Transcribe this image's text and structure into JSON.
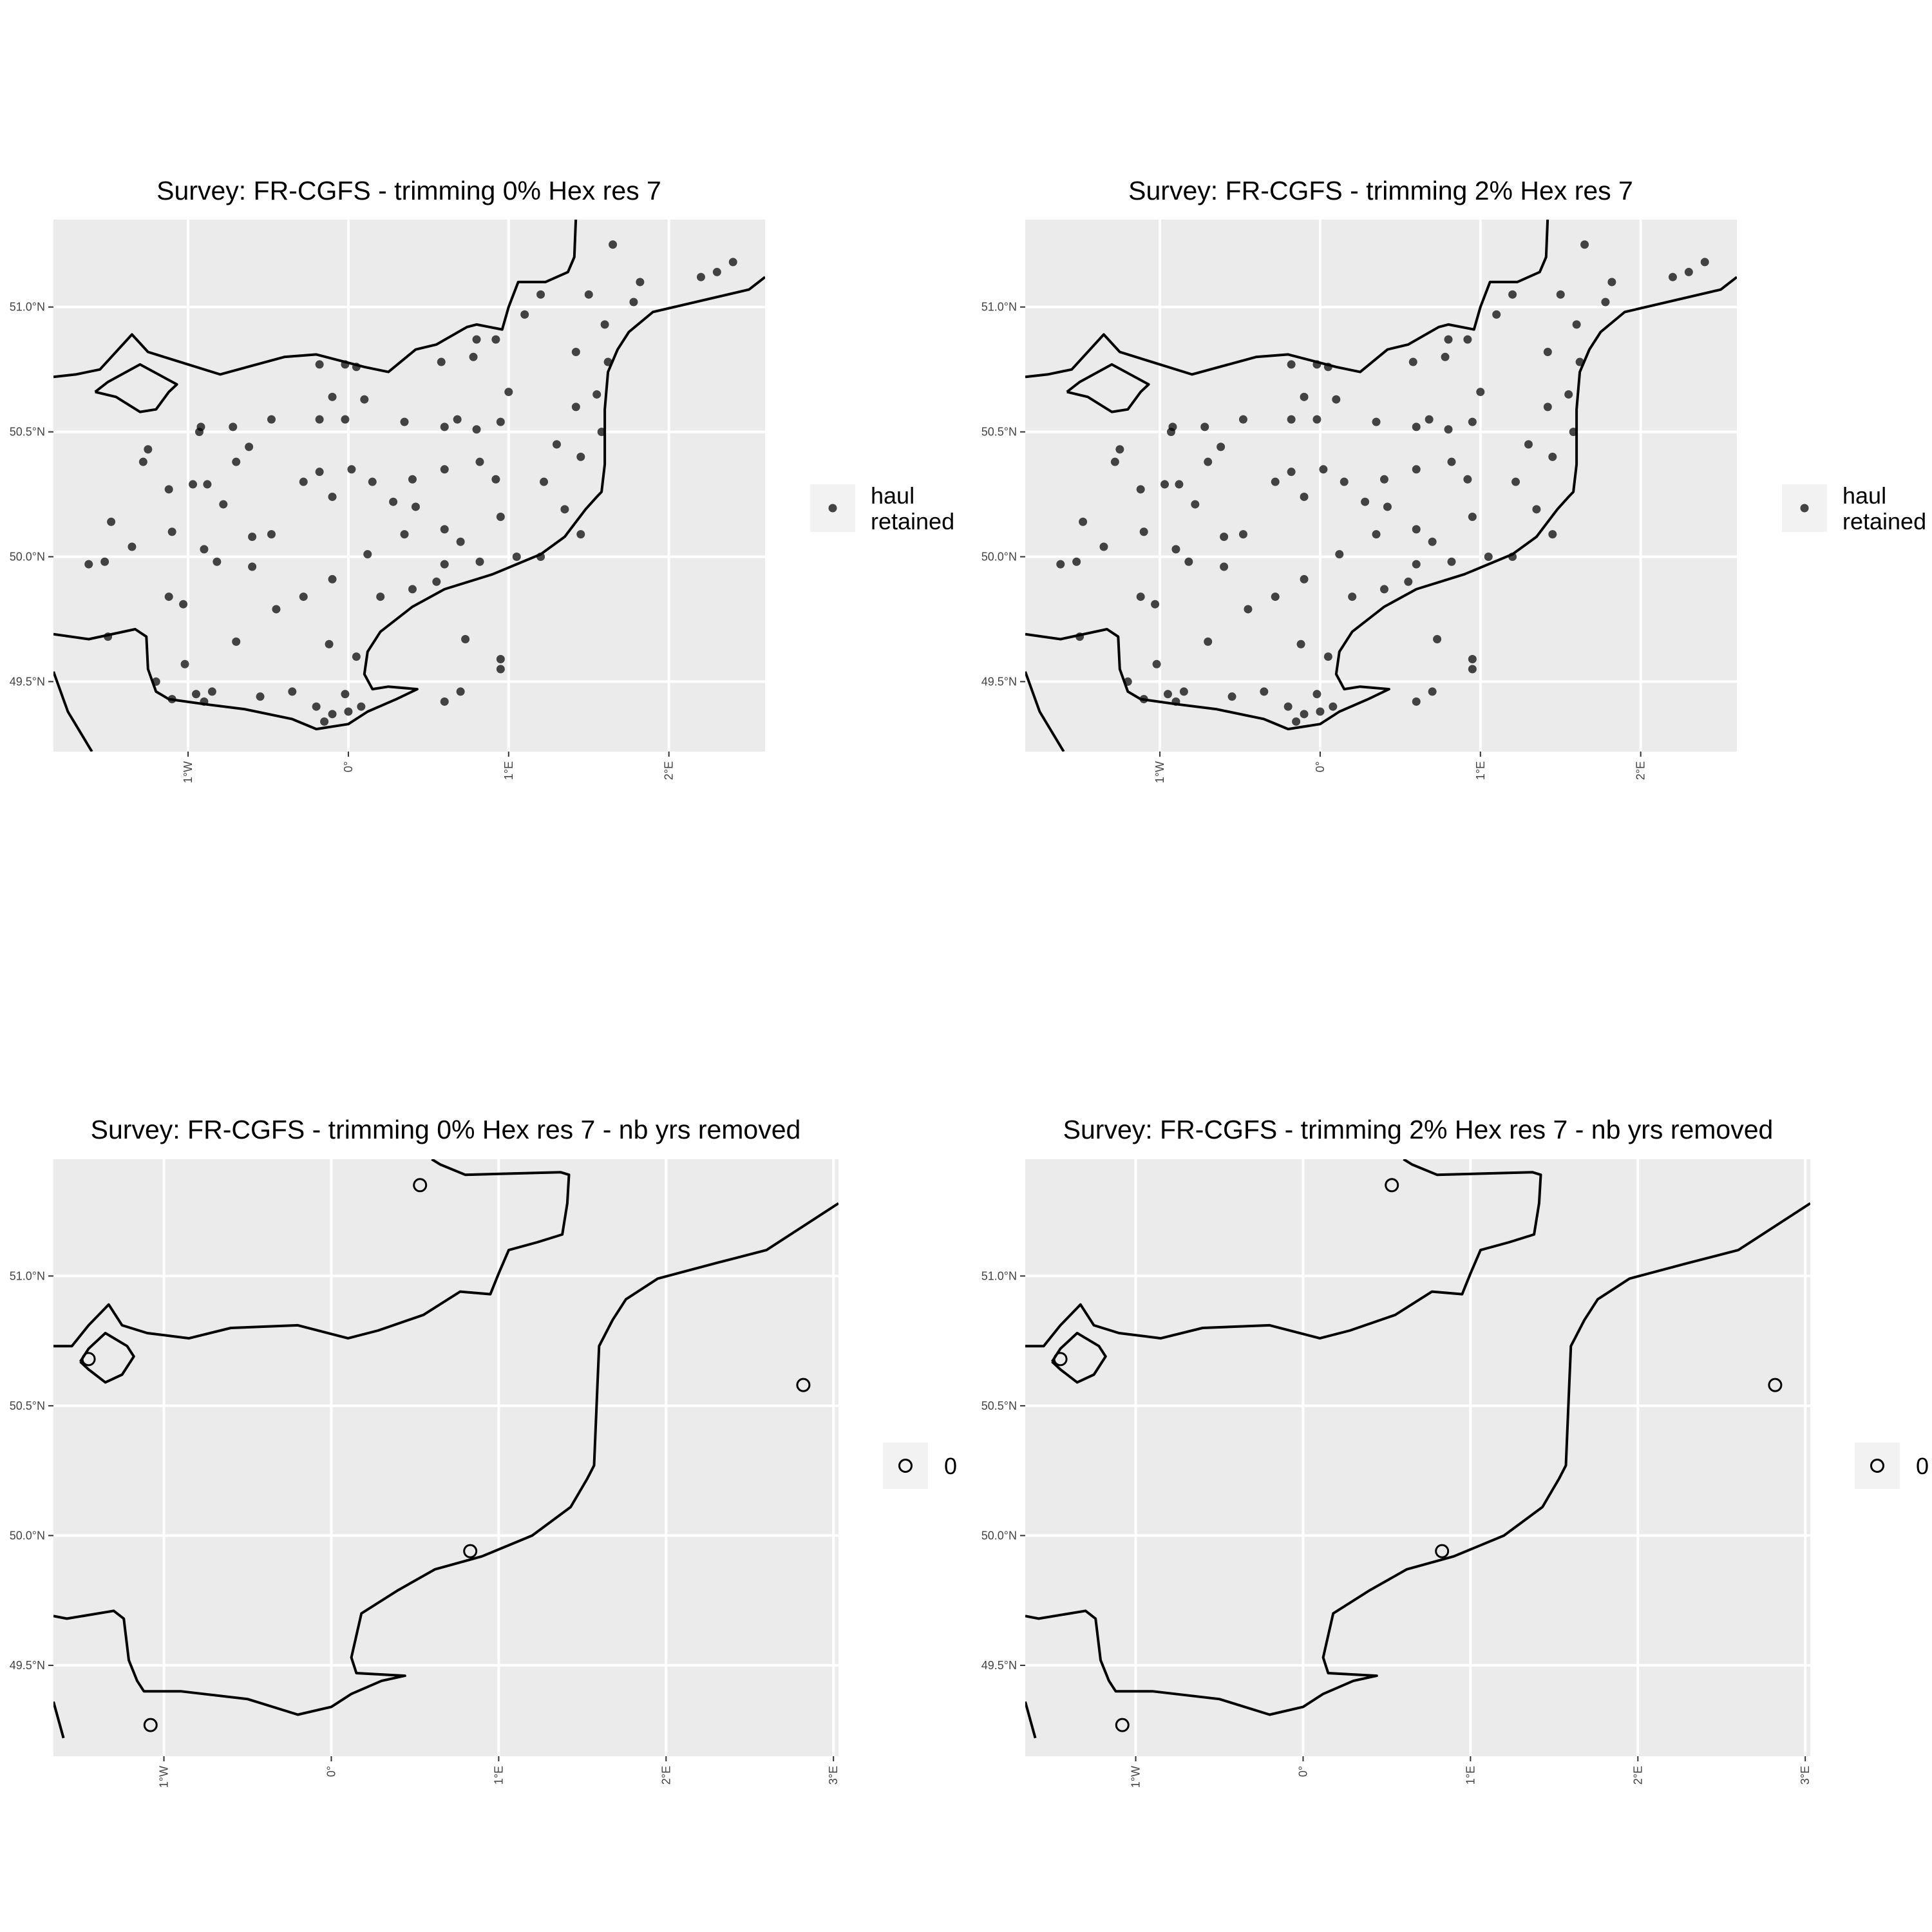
{
  "chart_data": [
    {
      "type": "scatter",
      "title": "Survey: FR-CGFS - trimming 0% Hex res 7",
      "x_ticks": [
        "1°W",
        "0°",
        "1°E",
        "2°E"
      ],
      "y_ticks": [
        "49.5°N",
        "50.0°N",
        "50.5°N",
        "51.0°N"
      ],
      "xlim": [
        -1.84,
        2.6
      ],
      "ylim": [
        49.22,
        51.35
      ],
      "legend": {
        "labels": [
          "haul",
          "retained"
        ],
        "placement": "right",
        "symbol": "filled-circle"
      },
      "series": [
        {
          "values": [
            [
              -1.62,
              49.97
            ],
            [
              -1.52,
              49.98
            ],
            [
              -1.48,
              50.14
            ],
            [
              -1.5,
              49.68
            ],
            [
              -1.28,
              50.38
            ],
            [
              -1.35,
              50.04
            ],
            [
              -1.25,
              50.43
            ],
            [
              -1.12,
              50.27
            ],
            [
              -1.1,
              50.1
            ],
            [
              -1.12,
              49.84
            ],
            [
              -1.03,
              49.81
            ],
            [
              -0.92,
              50.52
            ],
            [
              -0.97,
              50.29
            ],
            [
              -0.9,
              50.03
            ],
            [
              -0.93,
              50.5
            ],
            [
              -0.88,
              50.29
            ],
            [
              -0.82,
              49.98
            ],
            [
              -0.78,
              50.21
            ],
            [
              -0.72,
              50.52
            ],
            [
              -0.7,
              50.38
            ],
            [
              -0.7,
              49.66
            ],
            [
              -0.62,
              50.44
            ],
            [
              -0.6,
              50.08
            ],
            [
              -0.6,
              49.96
            ],
            [
              -0.48,
              50.55
            ],
            [
              -0.48,
              50.09
            ],
            [
              -0.45,
              49.79
            ],
            [
              -0.28,
              50.3
            ],
            [
              -0.28,
              49.84
            ],
            [
              -0.18,
              50.77
            ],
            [
              -0.18,
              50.55
            ],
            [
              -0.18,
              50.34
            ],
            [
              -0.12,
              49.65
            ],
            [
              -0.1,
              50.24
            ],
            [
              -0.1,
              49.91
            ],
            [
              -0.02,
              50.77
            ],
            [
              -0.02,
              50.55
            ],
            [
              0.02,
              50.35
            ],
            [
              0.05,
              50.76
            ],
            [
              0.1,
              50.63
            ],
            [
              0.12,
              50.01
            ],
            [
              0.2,
              49.84
            ],
            [
              0.28,
              50.22
            ],
            [
              0.35,
              50.54
            ],
            [
              0.4,
              50.31
            ],
            [
              0.35,
              50.09
            ],
            [
              0.4,
              49.87
            ],
            [
              0.55,
              49.9
            ],
            [
              0.58,
              50.78
            ],
            [
              0.6,
              50.52
            ],
            [
              0.6,
              50.35
            ],
            [
              0.6,
              50.11
            ],
            [
              0.6,
              49.97
            ],
            [
              0.68,
              50.55
            ],
            [
              0.7,
              50.06
            ],
            [
              0.78,
              50.8
            ],
            [
              0.8,
              50.87
            ],
            [
              0.8,
              50.51
            ],
            [
              0.82,
              50.38
            ],
            [
              0.82,
              49.98
            ],
            [
              0.92,
              50.87
            ],
            [
              0.95,
              50.54
            ],
            [
              0.95,
              50.16
            ],
            [
              1.0,
              50.66
            ],
            [
              1.05,
              50.0
            ],
            [
              1.1,
              50.97
            ],
            [
              1.2,
              50.0
            ],
            [
              1.2,
              51.05
            ],
            [
              1.22,
              50.3
            ],
            [
              1.3,
              50.45
            ],
            [
              1.35,
              50.19
            ],
            [
              1.42,
              50.82
            ],
            [
              1.42,
              50.6
            ],
            [
              1.45,
              50.4
            ],
            [
              1.45,
              50.09
            ],
            [
              1.5,
              51.05
            ],
            [
              1.55,
              50.65
            ],
            [
              1.58,
              50.5
            ],
            [
              1.62,
              50.78
            ],
            [
              1.6,
              50.93
            ],
            [
              1.65,
              51.25
            ],
            [
              1.82,
              51.1
            ],
            [
              1.78,
              51.02
            ],
            [
              2.2,
              51.12
            ],
            [
              2.3,
              51.14
            ],
            [
              2.4,
              51.18
            ],
            [
              -1.02,
              49.57
            ],
            [
              -0.95,
              49.45
            ],
            [
              -1.2,
              49.5
            ],
            [
              -1.1,
              49.43
            ],
            [
              -0.9,
              49.42
            ],
            [
              -0.85,
              49.46
            ],
            [
              -0.55,
              49.44
            ],
            [
              -0.35,
              49.46
            ],
            [
              -0.2,
              49.4
            ],
            [
              -0.1,
              49.37
            ],
            [
              0.0,
              49.38
            ],
            [
              0.08,
              49.4
            ],
            [
              0.05,
              49.6
            ],
            [
              -0.15,
              49.34
            ],
            [
              -0.02,
              49.45
            ],
            [
              0.7,
              49.46
            ],
            [
              0.95,
              49.59
            ],
            [
              0.6,
              49.42
            ],
            [
              -0.1,
              50.64
            ],
            [
              0.15,
              50.3
            ],
            [
              0.42,
              50.2
            ],
            [
              0.92,
              50.31
            ],
            [
              0.73,
              49.67
            ],
            [
              0.95,
              49.55
            ]
          ]
        }
      ]
    },
    {
      "type": "scatter",
      "title": "Survey: FR-CGFS - trimming 2% Hex res 7",
      "x_ticks": [
        "1°W",
        "0°",
        "1°E",
        "2°E"
      ],
      "y_ticks": [
        "49.5°N",
        "50.0°N",
        "50.5°N",
        "51.0°N"
      ],
      "xlim": [
        -1.84,
        2.6
      ],
      "ylim": [
        49.22,
        51.35
      ],
      "legend": {
        "labels": [
          "haul",
          "retained"
        ],
        "placement": "right",
        "symbol": "filled-circle"
      },
      "series": [
        {
          "values": [
            [
              -1.62,
              49.97
            ],
            [
              -1.52,
              49.98
            ],
            [
              -1.48,
              50.14
            ],
            [
              -1.5,
              49.68
            ],
            [
              -1.28,
              50.38
            ],
            [
              -1.35,
              50.04
            ],
            [
              -1.25,
              50.43
            ],
            [
              -1.12,
              50.27
            ],
            [
              -1.1,
              50.1
            ],
            [
              -1.12,
              49.84
            ],
            [
              -1.03,
              49.81
            ],
            [
              -0.92,
              50.52
            ],
            [
              -0.97,
              50.29
            ],
            [
              -0.9,
              50.03
            ],
            [
              -0.93,
              50.5
            ],
            [
              -0.88,
              50.29
            ],
            [
              -0.82,
              49.98
            ],
            [
              -0.78,
              50.21
            ],
            [
              -0.72,
              50.52
            ],
            [
              -0.7,
              50.38
            ],
            [
              -0.7,
              49.66
            ],
            [
              -0.62,
              50.44
            ],
            [
              -0.6,
              50.08
            ],
            [
              -0.6,
              49.96
            ],
            [
              -0.48,
              50.55
            ],
            [
              -0.48,
              50.09
            ],
            [
              -0.45,
              49.79
            ],
            [
              -0.28,
              50.3
            ],
            [
              -0.28,
              49.84
            ],
            [
              -0.18,
              50.77
            ],
            [
              -0.18,
              50.55
            ],
            [
              -0.18,
              50.34
            ],
            [
              -0.12,
              49.65
            ],
            [
              -0.1,
              50.24
            ],
            [
              -0.1,
              49.91
            ],
            [
              -0.02,
              50.77
            ],
            [
              -0.02,
              50.55
            ],
            [
              0.02,
              50.35
            ],
            [
              0.05,
              50.76
            ],
            [
              0.1,
              50.63
            ],
            [
              0.12,
              50.01
            ],
            [
              0.2,
              49.84
            ],
            [
              0.28,
              50.22
            ],
            [
              0.35,
              50.54
            ],
            [
              0.4,
              50.31
            ],
            [
              0.35,
              50.09
            ],
            [
              0.4,
              49.87
            ],
            [
              0.55,
              49.9
            ],
            [
              0.58,
              50.78
            ],
            [
              0.6,
              50.52
            ],
            [
              0.6,
              50.35
            ],
            [
              0.6,
              50.11
            ],
            [
              0.6,
              49.97
            ],
            [
              0.68,
              50.55
            ],
            [
              0.7,
              50.06
            ],
            [
              0.78,
              50.8
            ],
            [
              0.8,
              50.87
            ],
            [
              0.8,
              50.51
            ],
            [
              0.82,
              50.38
            ],
            [
              0.82,
              49.98
            ],
            [
              0.92,
              50.87
            ],
            [
              0.95,
              50.54
            ],
            [
              0.95,
              50.16
            ],
            [
              1.0,
              50.66
            ],
            [
              1.05,
              50.0
            ],
            [
              1.1,
              50.97
            ],
            [
              1.2,
              50.0
            ],
            [
              1.2,
              51.05
            ],
            [
              1.22,
              50.3
            ],
            [
              1.3,
              50.45
            ],
            [
              1.35,
              50.19
            ],
            [
              1.42,
              50.82
            ],
            [
              1.42,
              50.6
            ],
            [
              1.45,
              50.4
            ],
            [
              1.45,
              50.09
            ],
            [
              1.5,
              51.05
            ],
            [
              1.55,
              50.65
            ],
            [
              1.58,
              50.5
            ],
            [
              1.62,
              50.78
            ],
            [
              1.6,
              50.93
            ],
            [
              1.65,
              51.25
            ],
            [
              1.82,
              51.1
            ],
            [
              1.78,
              51.02
            ],
            [
              2.2,
              51.12
            ],
            [
              2.3,
              51.14
            ],
            [
              2.4,
              51.18
            ],
            [
              -1.02,
              49.57
            ],
            [
              -0.95,
              49.45
            ],
            [
              -1.2,
              49.5
            ],
            [
              -1.1,
              49.43
            ],
            [
              -0.9,
              49.42
            ],
            [
              -0.85,
              49.46
            ],
            [
              -0.55,
              49.44
            ],
            [
              -0.35,
              49.46
            ],
            [
              -0.2,
              49.4
            ],
            [
              -0.1,
              49.37
            ],
            [
              0.0,
              49.38
            ],
            [
              0.08,
              49.4
            ],
            [
              0.05,
              49.6
            ],
            [
              -0.15,
              49.34
            ],
            [
              -0.02,
              49.45
            ],
            [
              0.7,
              49.46
            ],
            [
              0.95,
              49.59
            ],
            [
              0.6,
              49.42
            ],
            [
              -0.1,
              50.64
            ],
            [
              0.15,
              50.3
            ],
            [
              0.42,
              50.2
            ],
            [
              0.92,
              50.31
            ],
            [
              0.73,
              49.67
            ],
            [
              0.95,
              49.55
            ]
          ]
        }
      ]
    },
    {
      "type": "scatter",
      "title": "Survey: FR-CGFS - trimming 0% Hex res 7 - nb yrs removed",
      "x_ticks": [
        "1°W",
        "0°",
        "1°E",
        "2°E",
        "3°E"
      ],
      "y_ticks": [
        "49.5°N",
        "50.0°N",
        "50.5°N",
        "51.0°N"
      ],
      "xlim": [
        -1.66,
        3.03
      ],
      "ylim": [
        49.15,
        51.45
      ],
      "legend": {
        "labels": [
          "0"
        ],
        "placement": "right",
        "symbol": "open-circle"
      },
      "series": [
        {
          "values": [
            [
              -1.45,
              50.68
            ],
            [
              -1.08,
              49.27
            ],
            [
              0.53,
              51.35
            ],
            [
              0.83,
              49.94
            ],
            [
              2.82,
              50.58
            ]
          ]
        }
      ]
    },
    {
      "type": "scatter",
      "title": "Survey: FR-CGFS - trimming 2% Hex res 7 - nb yrs removed",
      "x_ticks": [
        "1°W",
        "0°",
        "1°E",
        "2°E",
        "3°E"
      ],
      "y_ticks": [
        "49.5°N",
        "50.0°N",
        "50.5°N",
        "51.0°N"
      ],
      "xlim": [
        -1.66,
        3.03
      ],
      "ylim": [
        49.15,
        51.45
      ],
      "legend": {
        "labels": [
          "0"
        ],
        "placement": "right",
        "symbol": "open-circle"
      },
      "series": [
        {
          "values": [
            [
              -1.45,
              50.68
            ],
            [
              -1.08,
              49.27
            ],
            [
              0.53,
              51.35
            ],
            [
              0.83,
              49.94
            ],
            [
              2.82,
              50.58
            ]
          ]
        }
      ]
    }
  ]
}
